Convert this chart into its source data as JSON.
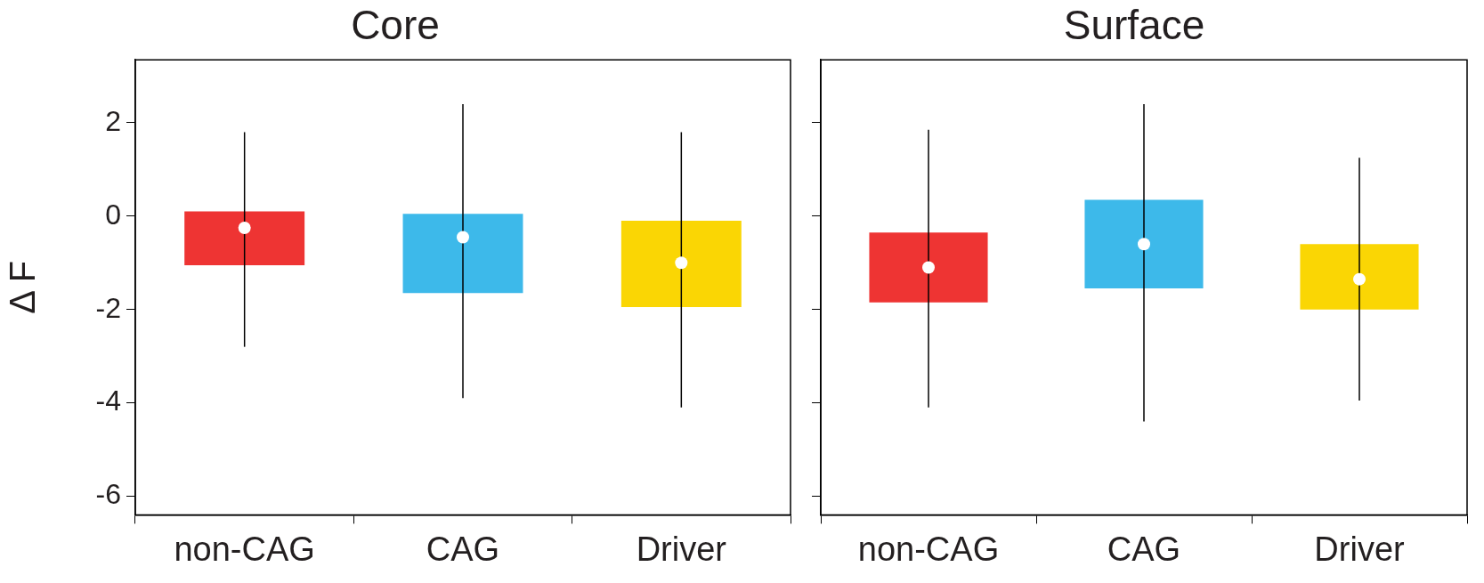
{
  "chart_data": [
    {
      "type": "box",
      "title": "Core",
      "ylabel": "Δ F",
      "categories": [
        "non-CAG",
        "CAG",
        "Driver"
      ],
      "colors": [
        "#ee3433",
        "#3db9ea",
        "#fad604"
      ],
      "boxes": [
        {
          "low": -2.8,
          "q1": -1.05,
          "median": -0.25,
          "q3": 0.1,
          "high": 1.8
        },
        {
          "low": -3.9,
          "q1": -1.65,
          "median": -0.45,
          "q3": 0.05,
          "high": 2.4
        },
        {
          "low": -4.1,
          "q1": -1.95,
          "median": -1.0,
          "q3": -0.1,
          "high": 1.8
        }
      ],
      "ylim": [
        -6.4,
        3.35
      ],
      "yticks": [
        -6,
        -4,
        -2,
        0,
        2
      ],
      "grid": false,
      "legend": false
    },
    {
      "type": "box",
      "title": "Surface",
      "categories": [
        "non-CAG",
        "CAG",
        "Driver"
      ],
      "colors": [
        "#ee3433",
        "#3db9ea",
        "#fad604"
      ],
      "boxes": [
        {
          "low": -4.1,
          "q1": -1.85,
          "median": -1.1,
          "q3": -0.35,
          "high": 1.85
        },
        {
          "low": -4.4,
          "q1": -1.55,
          "median": -0.6,
          "q3": 0.35,
          "high": 2.4
        },
        {
          "low": -3.95,
          "q1": -2.0,
          "median": -1.35,
          "q3": -0.6,
          "high": 1.25
        }
      ],
      "ylim": [
        -6.4,
        3.35
      ],
      "yticks": [
        -6,
        -4,
        -2,
        0,
        2
      ],
      "tick_labels": "x",
      "grid": false,
      "legend": false
    }
  ]
}
